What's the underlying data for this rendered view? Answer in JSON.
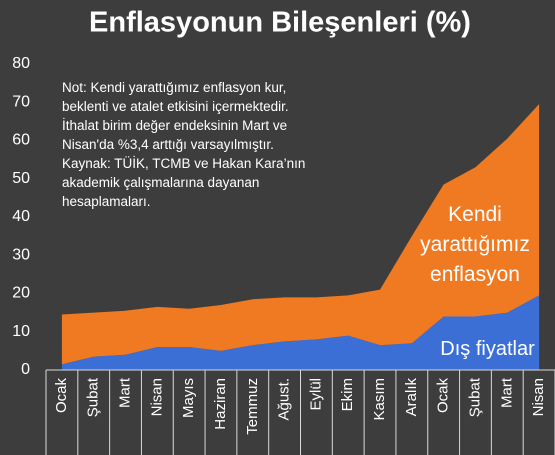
{
  "chart_data": {
    "type": "stacked_area",
    "title": "Enflasyonun Bileşenleri (%)",
    "categories": [
      "Ocak",
      "Şubat",
      "Mart",
      "Nisan",
      "Mayıs",
      "Haziran",
      "Temmuz",
      "Ağust.",
      "Eylül",
      "Ekim",
      "Kasım",
      "Aralık",
      "Ocak",
      "Şubat",
      "Mart",
      "Nisan"
    ],
    "series": [
      {
        "name": "Dış fiyatlar",
        "color": "#3b6fd6",
        "values": [
          1.5,
          3.5,
          4,
          6,
          6,
          5,
          6.5,
          7.5,
          8,
          9,
          6.5,
          7,
          14,
          14,
          15,
          19.5
        ]
      },
      {
        "name": "Kendi yarattığımız enflasyon",
        "color": "#f07a22",
        "values": [
          13,
          11.5,
          11.5,
          10.5,
          10,
          12,
          12,
          11.5,
          11,
          10.5,
          14.5,
          28,
          34.5,
          39,
          45.5,
          50
        ]
      }
    ],
    "ylim": [
      0,
      80
    ],
    "yticks": [
      0,
      10,
      20,
      30,
      40,
      50,
      60,
      70,
      80
    ],
    "annotation": [
      "Not: Kendi yarattığımız enflasyon kur,",
      "beklenti ve atalet etkisini içermektedir.",
      "İthalat birim değer endeksinin Mart ve",
      "Nisan'da %3,4 arttığı varsayılmıştır.",
      "Kaynak: TÜİK, TCMB ve Hakan Kara’nın",
      "akademik çalışmalarına dayanan",
      "hesaplamaları."
    ]
  }
}
